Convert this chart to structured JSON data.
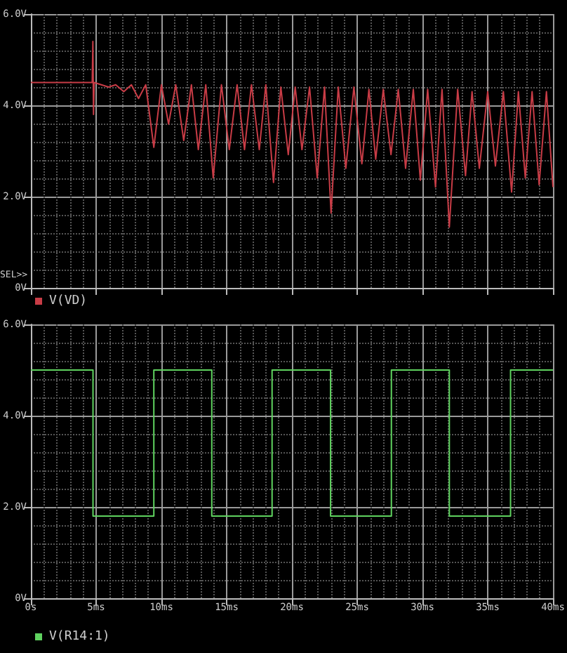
{
  "chart_data": [
    {
      "type": "line",
      "annotations": [
        "SEL>>"
      ],
      "xlim": [
        0,
        40
      ],
      "xticks": [
        {
          "value": 0,
          "label": null
        },
        {
          "value": 5,
          "label": null
        },
        {
          "value": 10,
          "label": null
        },
        {
          "value": 15,
          "label": null
        },
        {
          "value": 20,
          "label": null
        },
        {
          "value": 25,
          "label": null
        },
        {
          "value": 30,
          "label": null
        },
        {
          "value": 35,
          "label": null
        },
        {
          "value": 40,
          "label": null
        }
      ],
      "ylim": [
        0,
        6
      ],
      "yticks": [
        {
          "value": 0,
          "label": "0V"
        },
        {
          "value": 2,
          "label": "2.0V"
        },
        {
          "value": 4,
          "label": "4.0V"
        },
        {
          "value": 6,
          "label": "6.0V"
        }
      ],
      "tick_labels": "y",
      "grid": true,
      "legend": "bottom left",
      "series": [
        {
          "name": "V(VD)",
          "color": "#c83c46",
          "x": [
            0,
            4.7,
            4.75,
            4.8,
            4.85,
            5.4,
            5.96,
            6.5,
            7.12,
            7.7,
            8.25,
            8.8,
            9.42,
            10.0,
            10.55,
            11.1,
            11.71,
            12.3,
            12.83,
            13.4,
            13.97,
            14.6,
            15.2,
            15.8,
            16.37,
            16.9,
            17.5,
            18.0,
            18.59,
            19.15,
            19.72,
            20.25,
            20.77,
            21.35,
            21.94,
            22.5,
            23.0,
            23.55,
            24.13,
            24.75,
            25.36,
            25.9,
            26.42,
            27.0,
            27.59,
            28.15,
            28.71,
            29.3,
            29.84,
            30.4,
            31.0,
            31.5,
            32.06,
            32.7,
            33.3,
            33.8,
            34.36,
            35.0,
            35.59,
            36.2,
            36.83,
            37.35,
            37.88,
            38.4,
            38.94,
            39.5,
            40
          ],
          "values": [
            4.5,
            4.5,
            5.4,
            3.8,
            4.5,
            4.45,
            4.4,
            4.45,
            4.3,
            4.45,
            4.15,
            4.45,
            3.08,
            4.45,
            3.59,
            4.45,
            3.23,
            4.45,
            3.03,
            4.45,
            2.41,
            4.45,
            3.03,
            4.45,
            3.03,
            4.45,
            3.03,
            4.45,
            2.31,
            4.4,
            2.92,
            4.4,
            3.03,
            4.4,
            2.41,
            4.4,
            1.64,
            4.4,
            2.62,
            4.4,
            2.72,
            4.35,
            2.82,
            4.35,
            2.92,
            4.35,
            2.62,
            4.35,
            2.36,
            4.35,
            2.21,
            4.35,
            1.33,
            4.35,
            2.46,
            4.3,
            2.62,
            4.3,
            2.67,
            4.3,
            2.1,
            4.3,
            2.41,
            4.3,
            2.26,
            4.3,
            2.21
          ]
        }
      ]
    },
    {
      "type": "line",
      "xlim": [
        0,
        40
      ],
      "xticks": [
        {
          "value": 0,
          "label": "0s"
        },
        {
          "value": 5,
          "label": "5ms"
        },
        {
          "value": 10,
          "label": "10ms"
        },
        {
          "value": 15,
          "label": "15ms"
        },
        {
          "value": 20,
          "label": "20ms"
        },
        {
          "value": 25,
          "label": "25ms"
        },
        {
          "value": 30,
          "label": "30ms"
        },
        {
          "value": 35,
          "label": "35ms"
        },
        {
          "value": 40,
          "label": "40ms"
        }
      ],
      "ylim": [
        0,
        6
      ],
      "yticks": [
        {
          "value": 0,
          "label": "0V"
        },
        {
          "value": 2,
          "label": "2.0V"
        },
        {
          "value": 4,
          "label": "4.0V"
        },
        {
          "value": 6,
          "label": "6.0V"
        }
      ],
      "grid": true,
      "legend": "bottom left",
      "series": [
        {
          "name": "V(R14:1)",
          "color": "#5fd25f",
          "x": [
            0,
            4.76,
            4.76,
            9.42,
            9.42,
            13.86,
            13.86,
            18.48,
            18.48,
            22.96,
            22.96,
            27.62,
            27.62,
            32.06,
            32.06,
            36.75,
            36.75,
            40
          ],
          "values": [
            5,
            5,
            1.8,
            1.8,
            5,
            5,
            1.8,
            1.8,
            5,
            5,
            1.8,
            1.8,
            5,
            5,
            1.8,
            1.8,
            5,
            5
          ]
        }
      ]
    }
  ]
}
